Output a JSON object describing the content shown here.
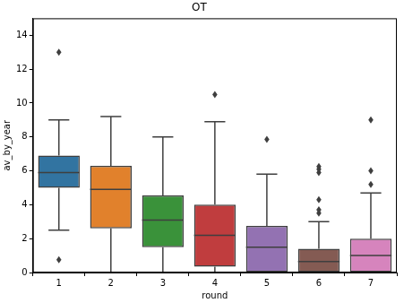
{
  "chart_data": {
    "type": "box",
    "title": "OT",
    "x_label": "round",
    "y_label": "av_by_year",
    "categories": [
      "1",
      "2",
      "3",
      "4",
      "5",
      "6",
      "7"
    ],
    "values": [
      {
        "whisker_low": 2.5,
        "q1": 5.0,
        "median": 5.9,
        "q3": 6.9,
        "whisker_high": 9.0,
        "outliers": [
          13.0,
          0.75
        ]
      },
      {
        "whisker_low": 0.0,
        "q1": 2.6,
        "median": 4.9,
        "q3": 6.3,
        "whisker_high": 9.2,
        "outliers": []
      },
      {
        "whisker_low": 0.0,
        "q1": 1.5,
        "median": 3.1,
        "q3": 4.55,
        "whisker_high": 8.0,
        "outliers": []
      },
      {
        "whisker_low": 0.0,
        "q1": 0.35,
        "median": 2.2,
        "q3": 4.0,
        "whisker_high": 8.9,
        "outliers": [
          10.5
        ]
      },
      {
        "whisker_low": 0.0,
        "q1": 0.0,
        "median": 1.5,
        "q3": 2.75,
        "whisker_high": 5.8,
        "outliers": [
          7.85
        ]
      },
      {
        "whisker_low": 0.0,
        "q1": 0.0,
        "median": 0.65,
        "q3": 1.4,
        "whisker_high": 3.0,
        "outliers": [
          3.5,
          3.7,
          4.3,
          5.9,
          6.1,
          6.25
        ]
      },
      {
        "whisker_low": 0.0,
        "q1": 0.0,
        "median": 1.0,
        "q3": 2.0,
        "whisker_high": 4.7,
        "outliers": [
          5.2,
          6.0,
          9.0
        ]
      }
    ],
    "colors": [
      "#3274a1",
      "#e1812c",
      "#3a923a",
      "#c03d3e",
      "#9372b2",
      "#845b53",
      "#d684bd"
    ],
    "ylim": [
      0,
      15
    ],
    "yticks": [
      0,
      2,
      4,
      6,
      8,
      10,
      12,
      14
    ],
    "grid": false,
    "marker": "diamond"
  }
}
